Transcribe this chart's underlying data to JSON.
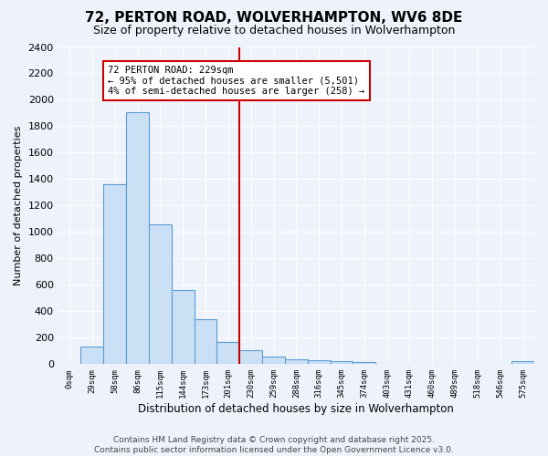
{
  "title1": "72, PERTON ROAD, WOLVERHAMPTON, WV6 8DE",
  "title2": "Size of property relative to detached houses in Wolverhampton",
  "xlabel": "Distribution of detached houses by size in Wolverhampton",
  "ylabel": "Number of detached properties",
  "bin_labels": [
    "0sqm",
    "29sqm",
    "58sqm",
    "86sqm",
    "115sqm",
    "144sqm",
    "173sqm",
    "201sqm",
    "230sqm",
    "259sqm",
    "288sqm",
    "316sqm",
    "345sqm",
    "374sqm",
    "403sqm",
    "431sqm",
    "460sqm",
    "489sqm",
    "518sqm",
    "546sqm",
    "575sqm"
  ],
  "bar_heights": [
    0,
    130,
    1360,
    1910,
    1055,
    560,
    340,
    165,
    105,
    55,
    35,
    30,
    20,
    15,
    5,
    0,
    5,
    0,
    0,
    0,
    20
  ],
  "bar_color": "#cce0f5",
  "bar_edge_color": "#5b9bd5",
  "vline_bin_index": 8,
  "annotation_text": "72 PERTON ROAD: 229sqm\n← 95% of detached houses are smaller (5,501)\n4% of semi-detached houses are larger (258) →",
  "annotation_box_color": "#ffffff",
  "annotation_box_edge": "#cc0000",
  "vline_color": "#cc0000",
  "background_color": "#eef3fb",
  "grid_color": "#ffffff",
  "footer_text": "Contains HM Land Registry data © Crown copyright and database right 2025.\nContains public sector information licensed under the Open Government Licence v3.0.",
  "ylim": [
    0,
    2400
  ],
  "yticks": [
    0,
    200,
    400,
    600,
    800,
    1000,
    1200,
    1400,
    1600,
    1800,
    2000,
    2200,
    2400
  ],
  "title1_fontsize": 11,
  "title2_fontsize": 9,
  "ylabel_fontsize": 8,
  "xlabel_fontsize": 8.5,
  "tick_fontsize": 8,
  "xtick_fontsize": 6.5,
  "annotation_fontsize": 7.5,
  "footer_fontsize": 6.5
}
